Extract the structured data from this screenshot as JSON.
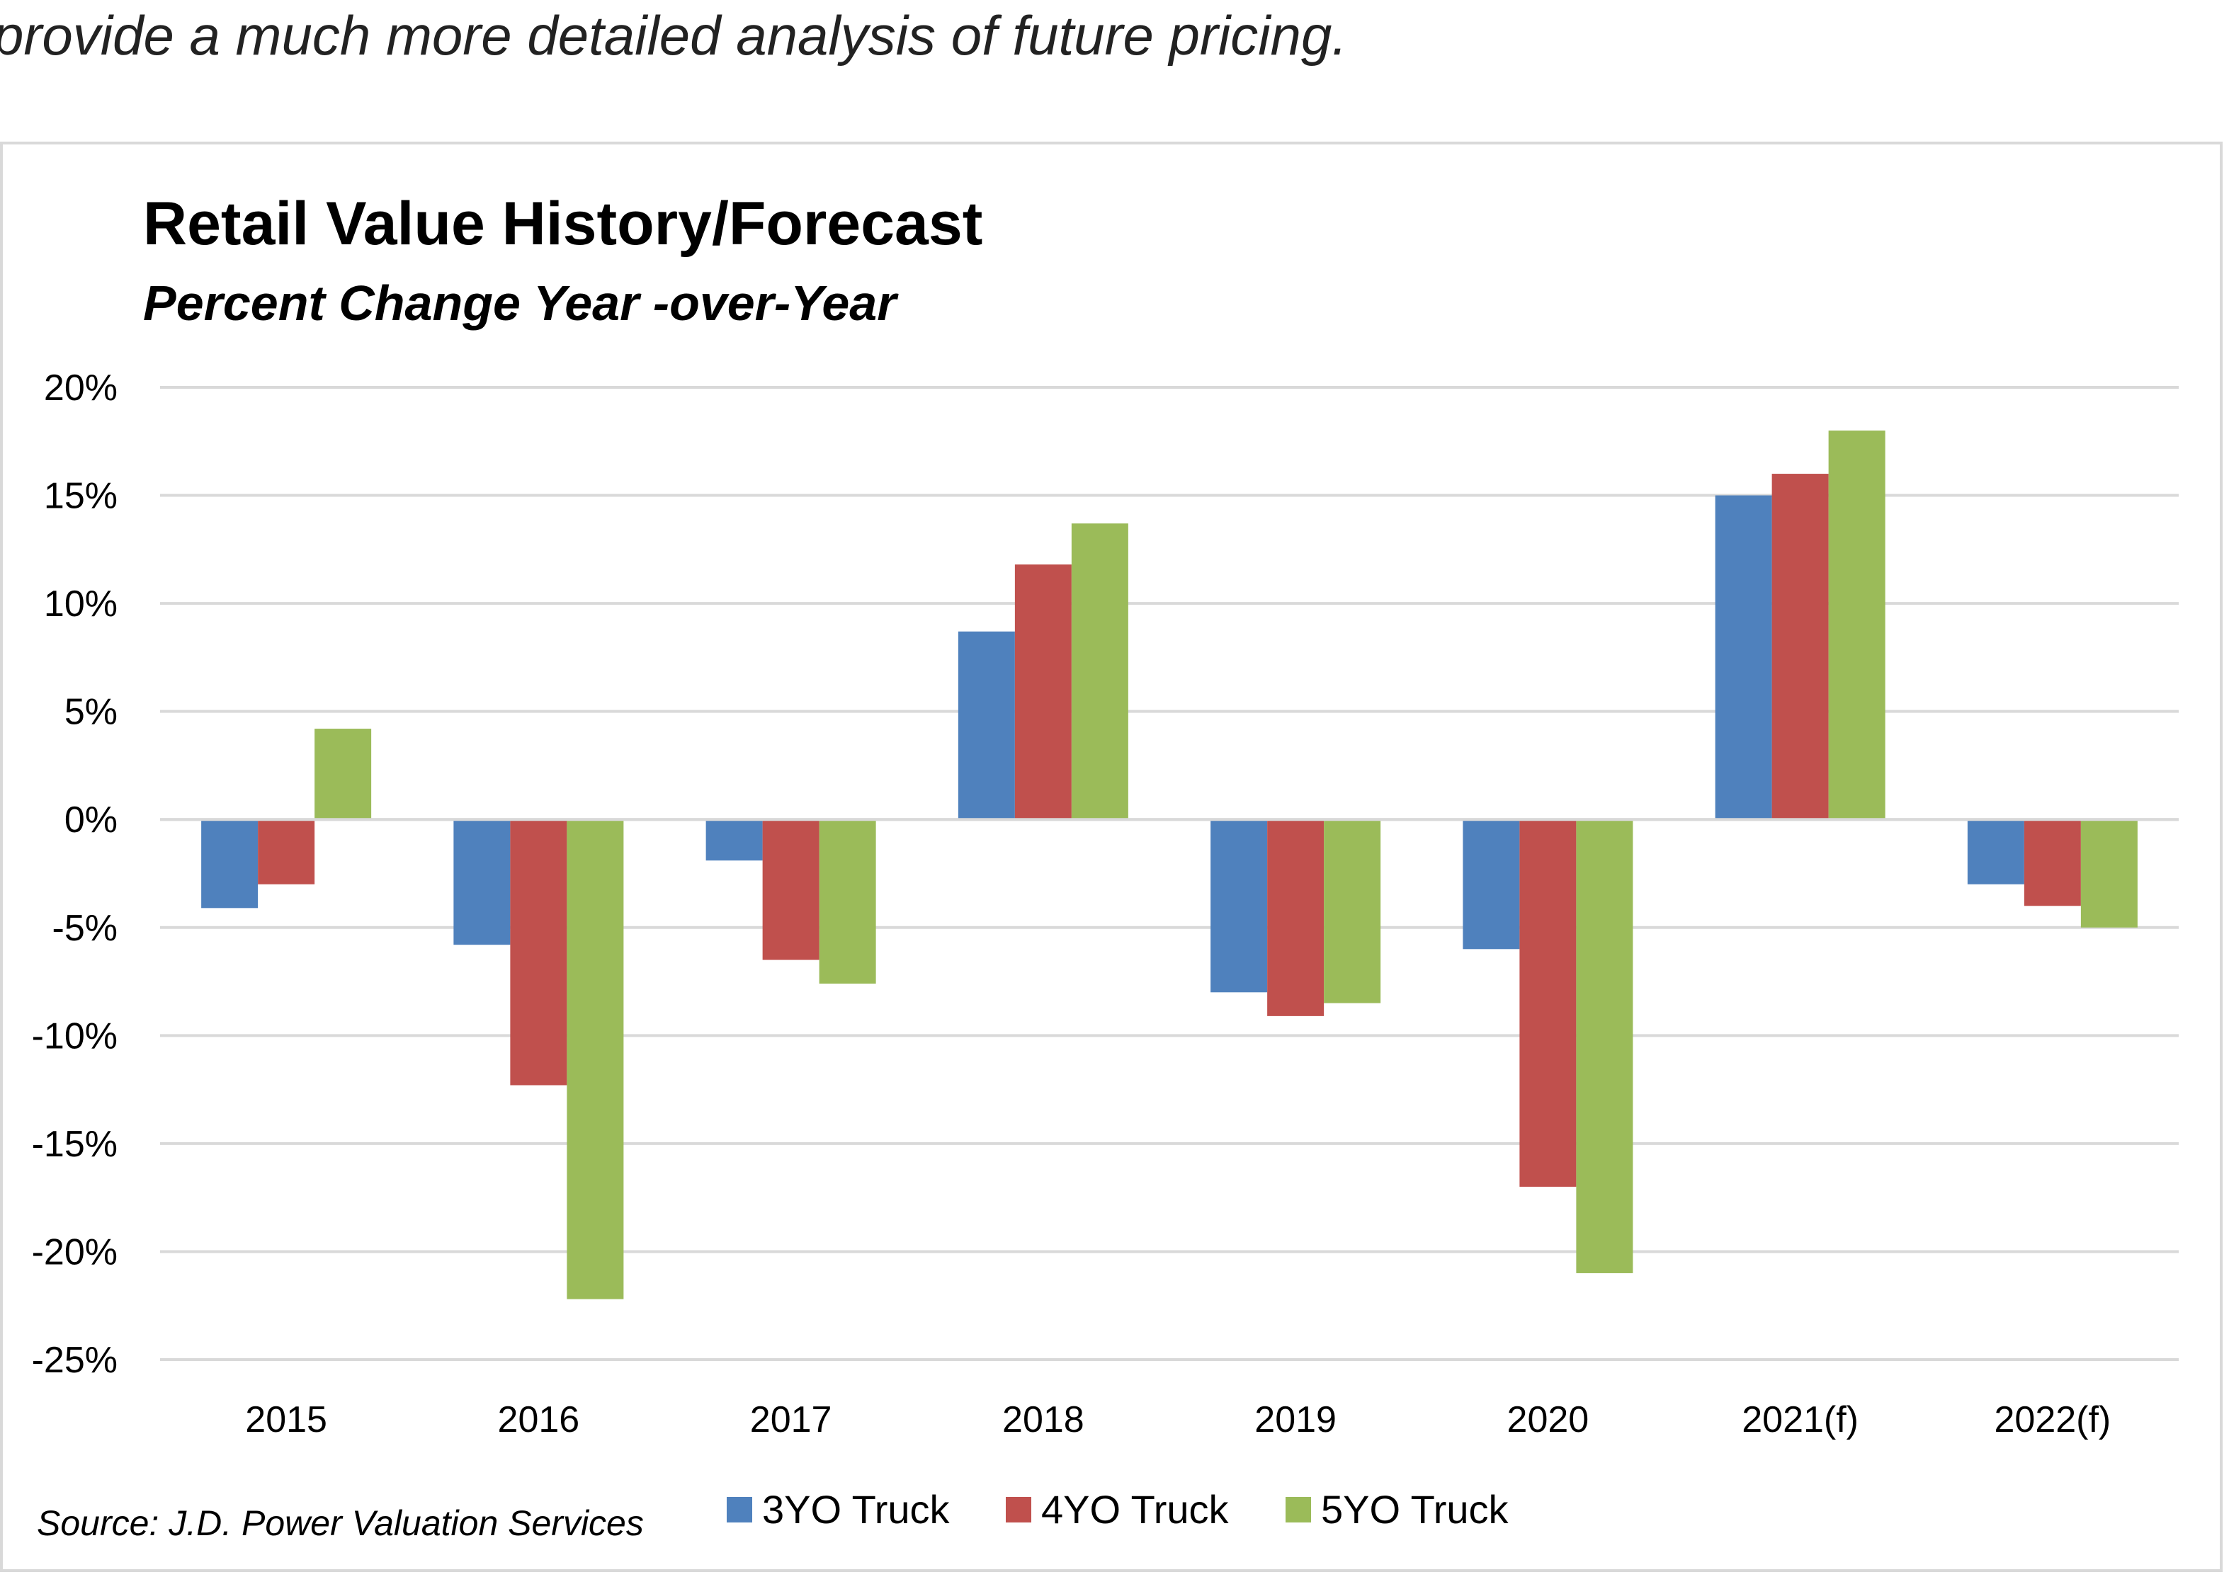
{
  "intro": {
    "text": "provide a much more detailed analysis of future pricing."
  },
  "chart_data": {
    "type": "bar",
    "title": "Retail Value History/Forecast",
    "subtitle": "Percent Change Year -over-Year",
    "categories": [
      "2015",
      "2016",
      "2017",
      "2018",
      "2019",
      "2020",
      "2021(f)",
      "2022(f)"
    ],
    "series": [
      {
        "name": "3YO Truck",
        "color": "#4f81bd",
        "values": [
          -4.1,
          -5.8,
          -1.9,
          8.7,
          -8.0,
          -6.0,
          15.0,
          -3.0
        ]
      },
      {
        "name": "4YO Truck",
        "color": "#c0504d",
        "values": [
          -3.0,
          -12.3,
          -6.5,
          11.8,
          -9.1,
          -17.0,
          16.0,
          -4.0
        ]
      },
      {
        "name": "5YO Truck",
        "color": "#9bbb59",
        "values": [
          4.2,
          -22.2,
          -7.6,
          13.7,
          -8.5,
          -21.0,
          18.0,
          -5.0
        ]
      }
    ],
    "ylim": [
      -25,
      20
    ],
    "yticks": [
      20,
      15,
      10,
      5,
      0,
      -5,
      -10,
      -15,
      -20,
      -25
    ],
    "ytick_labels": [
      "20%",
      "15%",
      "10%",
      "5%",
      "0%",
      "-5%",
      "-10%",
      "-15%",
      "-20%",
      "-25%"
    ],
    "grid": true,
    "legend_position": "bottom",
    "source": "Source: J.D. Power Valuation Services"
  }
}
